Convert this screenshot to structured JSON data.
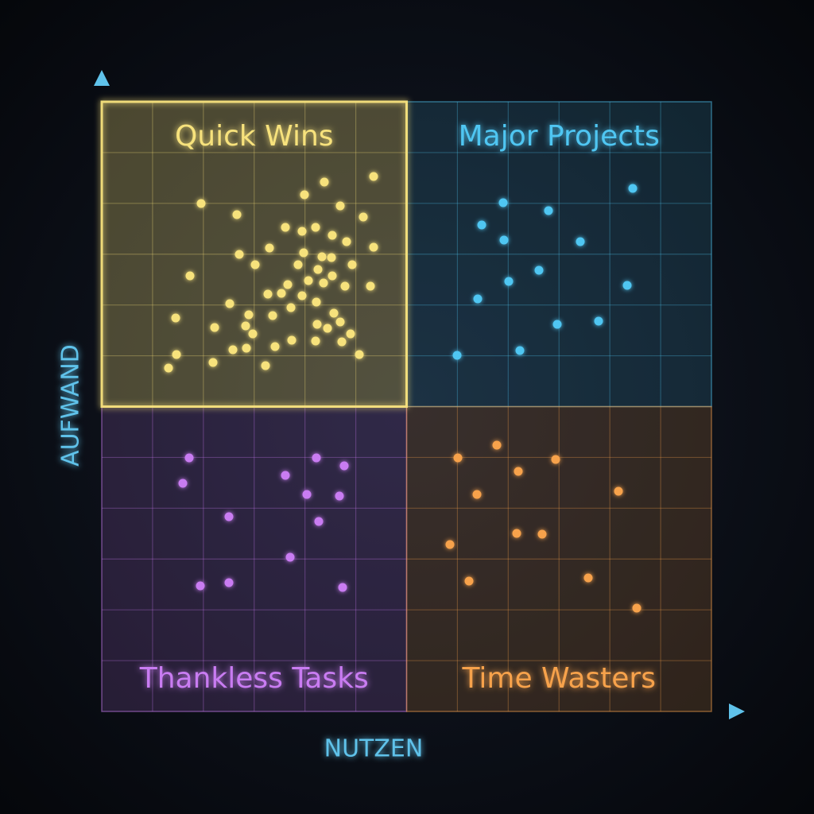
{
  "chart_data": {
    "type": "scatter",
    "xlabel": "NUTZEN",
    "ylabel": "AUFWAND",
    "xlim": [
      0,
      767
    ],
    "ylim": [
      0,
      767
    ],
    "series": [
      {
        "name": "Quick Wins",
        "color": "#f7e27c",
        "x": [
          342,
          280,
          255,
          125,
          300,
          170,
          329,
          231,
          269,
          252,
          290,
          308,
          342,
          211,
          173,
          254,
          277,
          289,
          193,
          247,
          315,
          272,
          111,
          290,
          260,
          234,
          279,
          306,
          338,
          209,
          226,
          252,
          161,
          238,
          270,
          93,
          185,
          215,
          292,
          181,
          142,
          271,
          300,
          284,
          313,
          190,
          239,
          269,
          218,
          165,
          182,
          302,
          94,
          324,
          140,
          206,
          84
        ],
        "values": [
          673,
          666,
          650,
          639,
          636,
          625,
          622,
          609,
          609,
          604,
          599,
          591,
          584,
          583,
          575,
          577,
          572,
          571,
          562,
          562,
          562,
          556,
          548,
          548,
          542,
          537,
          539,
          535,
          535,
          525,
          526,
          523,
          513,
          508,
          515,
          495,
          499,
          498,
          501,
          485,
          483,
          487,
          490,
          482,
          475,
          475,
          467,
          466,
          459,
          455,
          457,
          465,
          449,
          449,
          439,
          435,
          432
        ]
      },
      {
        "name": "Major Projects",
        "color": "#4fc6f2",
        "x": [
          668,
          505,
          562,
          478,
          506,
          602,
          550,
          512,
          661,
          473,
          625,
          573,
          526,
          447
        ],
        "values": [
          658,
          640,
          630,
          612,
          593,
          591,
          555,
          541,
          536,
          519,
          491,
          487,
          454,
          448
        ]
      },
      {
        "name": "Thankless Tasks",
        "color": "#c97cf2",
        "x": [
          110,
          270,
          305,
          231,
          102,
          258,
          299,
          160,
          273,
          237,
          160,
          124,
          303
        ],
        "values": [
          319,
          319,
          309,
          297,
          287,
          273,
          271,
          245,
          239,
          194,
          162,
          158,
          156
        ]
      },
      {
        "name": "Time Wasters",
        "color": "#f7a24c",
        "x": [
          448,
          497,
          571,
          524,
          472,
          650,
          522,
          554,
          438,
          612,
          462,
          673
        ],
        "values": [
          319,
          335,
          317,
          302,
          273,
          277,
          224,
          223,
          210,
          168,
          164,
          130
        ]
      }
    ]
  }
}
